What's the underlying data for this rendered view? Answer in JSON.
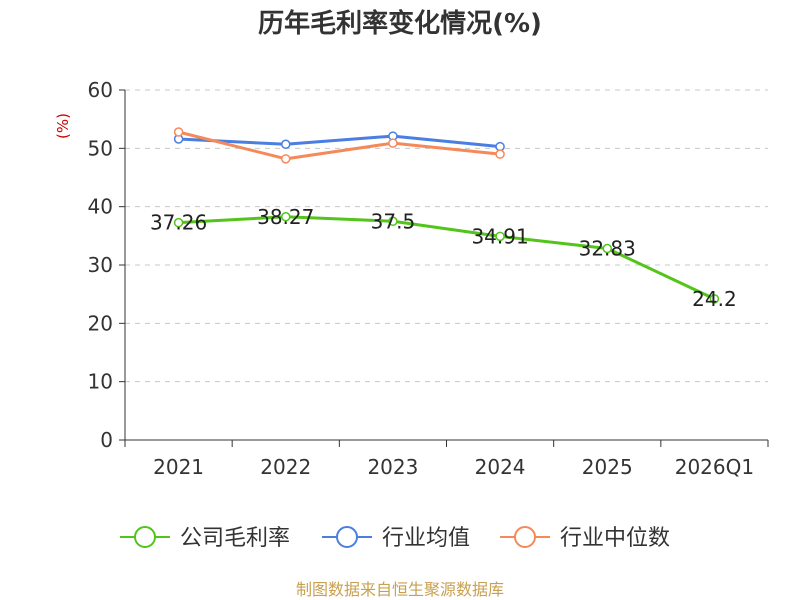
{
  "chart_data": {
    "type": "line",
    "title": "历年毛利率变化情况(%)",
    "ylabel": "(%)",
    "xlabel": "",
    "categories": [
      "2021",
      "2022",
      "2023",
      "2024",
      "2025",
      "2026Q1"
    ],
    "ylim": [
      0,
      60
    ],
    "yticks": [
      "0",
      "10",
      "20",
      "30",
      "40",
      "50",
      "60"
    ],
    "grid": true,
    "legend_position": "bottom",
    "series": [
      {
        "name": "公司毛利率",
        "color": "#52c41a",
        "values": [
          37.26,
          38.27,
          37.5,
          34.91,
          32.83,
          24.2
        ],
        "labels": [
          "37.26",
          "38.27",
          "37.5",
          "34.91",
          "32.83",
          "24.2"
        ]
      },
      {
        "name": "行业均值",
        "color": "#4a7ee0",
        "values": [
          51.6,
          50.7,
          52.1,
          50.3,
          null,
          null
        ]
      },
      {
        "name": "行业中位数",
        "color": "#f5895a",
        "values": [
          52.8,
          48.2,
          50.9,
          49.0,
          null,
          null
        ]
      }
    ],
    "source": "制图数据来自恒生聚源数据库"
  }
}
